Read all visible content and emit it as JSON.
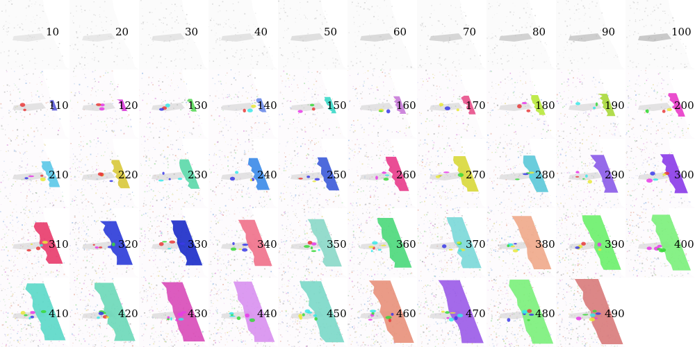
{
  "panels": [
    {
      "label": "10",
      "color": "#d8d8d8",
      "level": 0.0
    },
    {
      "label": "20",
      "color": "#d8d8d8",
      "level": 0.0
    },
    {
      "label": "30",
      "color": "#d4d4d4",
      "level": 0.0
    },
    {
      "label": "40",
      "color": "#cfcfcf",
      "level": 0.0
    },
    {
      "label": "50",
      "color": "#c8c8c8",
      "level": 0.0
    },
    {
      "label": "60",
      "color": "#c0c0c0",
      "level": 0.0
    },
    {
      "label": "70",
      "color": "#b8b8b8",
      "level": 0.0
    },
    {
      "label": "80",
      "color": "#b0b0b0",
      "level": 0.0
    },
    {
      "label": "90",
      "color": "#aaaaaa",
      "level": 0.0
    },
    {
      "label": "100",
      "color": "#a0a0a0",
      "level": 0.0
    },
    {
      "label": "110",
      "color": "#5a5ad8",
      "level": 0.08
    },
    {
      "label": "120",
      "color": "#d83ad8",
      "level": 0.1
    },
    {
      "label": "130",
      "color": "#5ad85a",
      "level": 0.12
    },
    {
      "label": "140",
      "color": "#6a8ae8",
      "level": 0.14
    },
    {
      "label": "150",
      "color": "#3ad8c8",
      "level": 0.18
    },
    {
      "label": "160",
      "color": "#c87ad8",
      "level": 0.2
    },
    {
      "label": "170",
      "color": "#e8508a",
      "level": 0.22
    },
    {
      "label": "180",
      "color": "#b8e83a",
      "level": 0.24
    },
    {
      "label": "190",
      "color": "#a8d83a",
      "level": 0.28
    },
    {
      "label": "200",
      "color": "#e83ac8",
      "level": 0.3
    },
    {
      "label": "210",
      "color": "#5ac8e8",
      "level": 0.34
    },
    {
      "label": "220",
      "color": "#d8c83a",
      "level": 0.38
    },
    {
      "label": "230",
      "color": "#5ad8a8",
      "level": 0.4
    },
    {
      "label": "240",
      "color": "#3a8ae8",
      "level": 0.44
    },
    {
      "label": "250",
      "color": "#3a5ad8",
      "level": 0.46
    },
    {
      "label": "260",
      "color": "#e83a8a",
      "level": 0.48
    },
    {
      "label": "270",
      "color": "#d8d83a",
      "level": 0.5
    },
    {
      "label": "280",
      "color": "#5ac8d8",
      "level": 0.52
    },
    {
      "label": "290",
      "color": "#8a5ae8",
      "level": 0.54
    },
    {
      "label": "300",
      "color": "#8a3ae8",
      "level": 0.56
    },
    {
      "label": "310",
      "color": "#e83a6a",
      "level": 0.6
    },
    {
      "label": "320",
      "color": "#2a3ad8",
      "level": 0.64
    },
    {
      "label": "330",
      "color": "#1a2ac8",
      "level": 0.66
    },
    {
      "label": "340",
      "color": "#f0708a",
      "level": 0.68
    },
    {
      "label": "350",
      "color": "#8ad8c8",
      "level": 0.7
    },
    {
      "label": "360",
      "color": "#4ad87a",
      "level": 0.74
    },
    {
      "label": "370",
      "color": "#7ad8d8",
      "level": 0.76
    },
    {
      "label": "380",
      "color": "#f0a88a",
      "level": 0.8
    },
    {
      "label": "390",
      "color": "#6af06a",
      "level": 0.82
    },
    {
      "label": "400",
      "color": "#7af07a",
      "level": 0.84
    },
    {
      "label": "410",
      "color": "#5ad8c8",
      "level": 0.86
    },
    {
      "label": "420",
      "color": "#6ad8b8",
      "level": 0.88
    },
    {
      "label": "430",
      "color": "#d84ab8",
      "level": 0.9
    },
    {
      "label": "440",
      "color": "#d890f0",
      "level": 0.92
    },
    {
      "label": "450",
      "color": "#7ad8c8",
      "level": 0.93
    },
    {
      "label": "460",
      "color": "#e8907a",
      "level": 0.95
    },
    {
      "label": "470",
      "color": "#9a5ae8",
      "level": 0.96
    },
    {
      "label": "480",
      "color": "#7af07a",
      "level": 0.98
    },
    {
      "label": "490",
      "color": "#d87a7a",
      "level": 1.0
    }
  ]
}
